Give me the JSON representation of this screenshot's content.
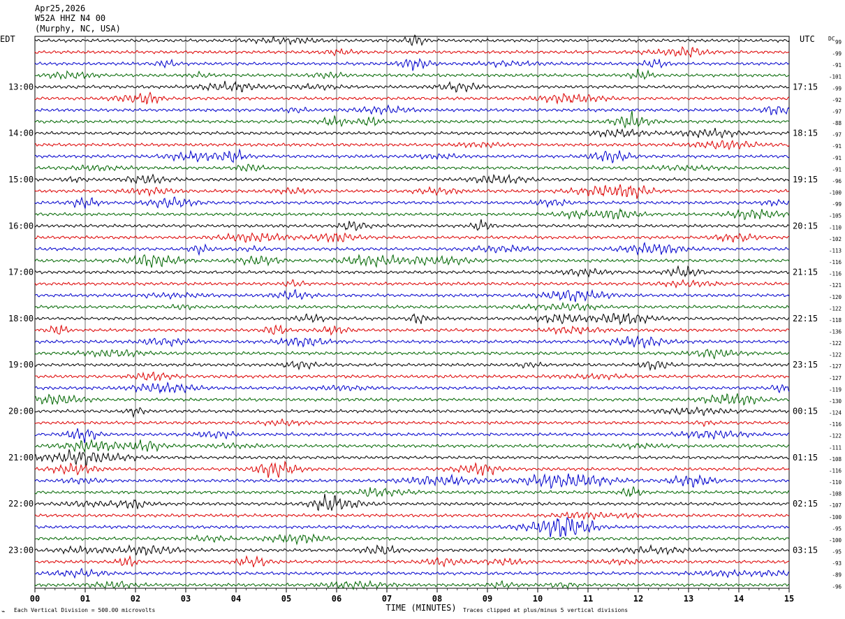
{
  "header": {
    "date": "Apr25,2026",
    "station": "W52A HHZ N4 00",
    "location": "(Murphy, NC, USA)"
  },
  "left_timezone": "EDT",
  "right_timezone": "UTC",
  "dc_label": "DC",
  "footer": {
    "scale_note": "Each Vertical Division =  500.00 microvolts",
    "clip_note": "Traces clipped at plus/minus 5 vertical divisions",
    "corner_mark": "⌁"
  },
  "colors": {
    "trace_cycle": [
      "#000000",
      "#dd0000",
      "#0000cc",
      "#006600"
    ],
    "grid": "#000000",
    "background": "#ffffff"
  },
  "chart_data": {
    "type": "line",
    "title": "",
    "xlabel": "TIME (MINUTES)",
    "ylabel": "",
    "xlim": [
      0,
      15
    ],
    "x_ticks": [
      "00",
      "01",
      "02",
      "03",
      "04",
      "05",
      "06",
      "07",
      "08",
      "09",
      "10",
      "11",
      "12",
      "13",
      "14",
      "15"
    ],
    "grid": true,
    "trace_count": 48,
    "left_hour_labels": [
      "13:00",
      "14:00",
      "15:00",
      "16:00",
      "17:00",
      "18:00",
      "19:00",
      "20:00",
      "21:00",
      "22:00",
      "23:00"
    ],
    "right_hour_labels": [
      "17:15",
      "18:15",
      "19:15",
      "20:15",
      "21:15",
      "22:15",
      "23:15",
      "00:15",
      "01:15",
      "02:15",
      "03:15"
    ],
    "dc_offsets": [
      99,
      -99,
      -91,
      -101,
      -99,
      -92,
      -97,
      -88,
      -97,
      -91,
      -91,
      -91,
      -96,
      -100,
      -99,
      -105,
      -110,
      -102,
      -113,
      -116,
      -116,
      -121,
      -120,
      -122,
      -118,
      -136,
      -122,
      -122,
      -127,
      -127,
      -119,
      -130,
      -124,
      -116,
      -122,
      -111,
      -108,
      -116,
      -110,
      -108,
      -107,
      -100,
      -95,
      -100,
      -95,
      -93,
      -89,
      -96
    ]
  }
}
